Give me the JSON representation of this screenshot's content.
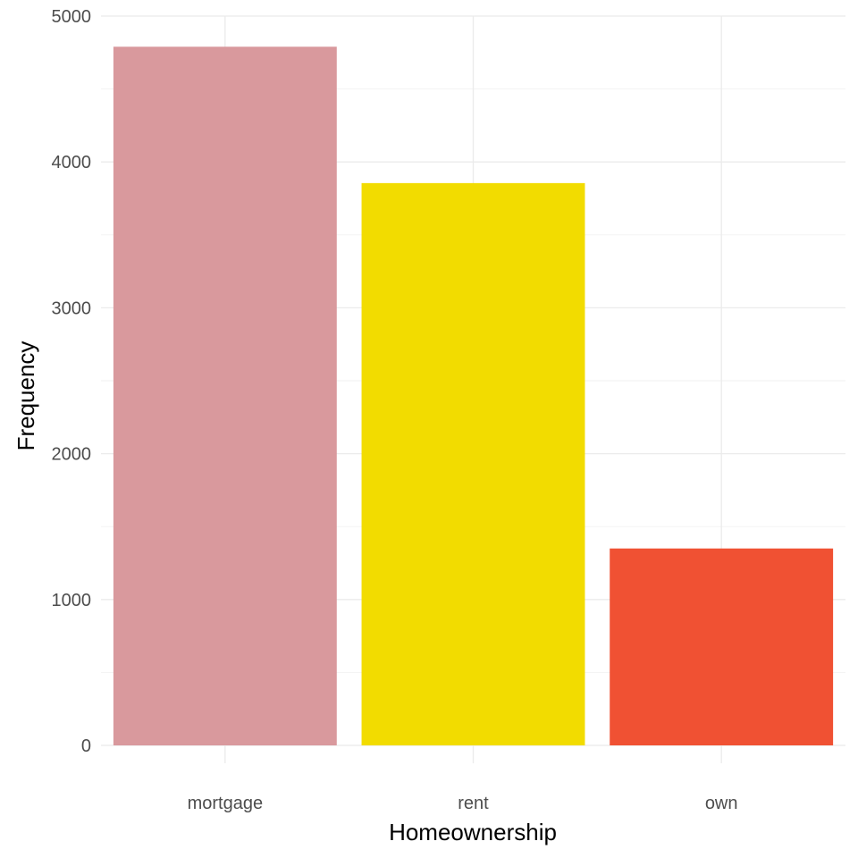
{
  "chart_data": {
    "type": "bar",
    "categories": [
      "mortgage",
      "rent",
      "own"
    ],
    "values": [
      4790,
      3855,
      1350
    ],
    "colors": [
      "#d9999d",
      "#f2dc00",
      "#f05133"
    ],
    "xlabel": "Homeownership",
    "ylabel": "Frequency",
    "ylim": [
      0,
      5000
    ],
    "yticks": [
      0,
      1000,
      2000,
      3000,
      4000,
      5000
    ],
    "grid": true,
    "legend": "none"
  }
}
